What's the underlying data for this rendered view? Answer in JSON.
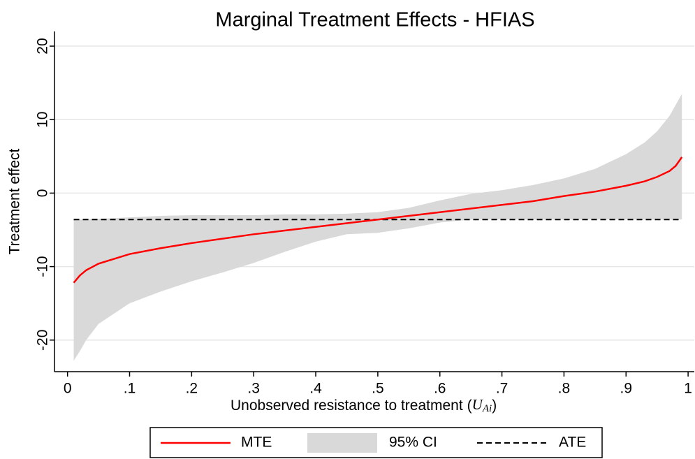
{
  "chart_data": {
    "type": "line",
    "title": "Marginal Treatment Effects - HFIAS",
    "xlabel": "Unobserved resistance to treatment",
    "xlabel_math": {
      "open": "(",
      "symbol": "U",
      "subscript": "Ai",
      "close": ")"
    },
    "ylabel": "Treatment effect",
    "x": [
      0.01,
      0.02,
      0.03,
      0.05,
      0.1,
      0.15,
      0.2,
      0.25,
      0.3,
      0.35,
      0.4,
      0.45,
      0.5,
      0.55,
      0.6,
      0.65,
      0.7,
      0.75,
      0.8,
      0.85,
      0.9,
      0.93,
      0.95,
      0.97,
      0.98,
      0.99
    ],
    "series": [
      {
        "name": "MTE",
        "color": "#ff0000",
        "values": [
          -12.2,
          -11.2,
          -10.5,
          -9.6,
          -8.3,
          -7.5,
          -6.8,
          -6.2,
          -5.6,
          -5.1,
          -4.6,
          -4.1,
          -3.6,
          -3.1,
          -2.6,
          -2.1,
          -1.6,
          -1.1,
          -0.4,
          0.2,
          1.0,
          1.6,
          2.2,
          3.0,
          3.7,
          4.9
        ]
      },
      {
        "name": "95% CI",
        "color": "#d9d9d9",
        "upper": [
          -3.6,
          -3.6,
          -3.6,
          -3.5,
          -3.3,
          -3.1,
          -3.0,
          -3.0,
          -3.0,
          -2.9,
          -2.9,
          -2.8,
          -2.6,
          -2.0,
          -1.0,
          -0.1,
          0.4,
          1.1,
          2.0,
          3.3,
          5.3,
          6.9,
          8.4,
          10.5,
          12.0,
          13.5
        ],
        "lower": [
          -22.8,
          -21.5,
          -20.0,
          -17.8,
          -15.0,
          -13.4,
          -12.0,
          -10.8,
          -9.5,
          -8.0,
          -6.6,
          -5.6,
          -5.4,
          -4.8,
          -4.0,
          -3.6,
          -3.6,
          -3.6,
          -3.6,
          -3.6,
          -3.6,
          -3.6,
          -3.6,
          -3.6,
          -3.6,
          -3.6
        ]
      },
      {
        "name": "ATE",
        "color": "#000000",
        "value": -3.6,
        "dash": true
      }
    ],
    "xlim": [
      -0.021,
      1.01
    ],
    "ylim": [
      -24.3,
      22
    ],
    "xticks": [
      0,
      {
        "value": 0.1,
        "label": ".1"
      },
      {
        "value": 0.2,
        "label": ".2"
      },
      {
        "value": 0.3,
        "label": ".3"
      },
      {
        "value": 0.4,
        "label": ".4"
      },
      {
        "value": 0.5,
        "label": ".5"
      },
      {
        "value": 0.6,
        "label": ".6"
      },
      {
        "value": 0.7,
        "label": ".7"
      },
      {
        "value": 0.8,
        "label": ".8"
      },
      {
        "value": 0.9,
        "label": ".9"
      },
      1
    ],
    "yticks": [
      -20,
      -10,
      0,
      10,
      20
    ],
    "grid": true,
    "legend": "bottom"
  }
}
